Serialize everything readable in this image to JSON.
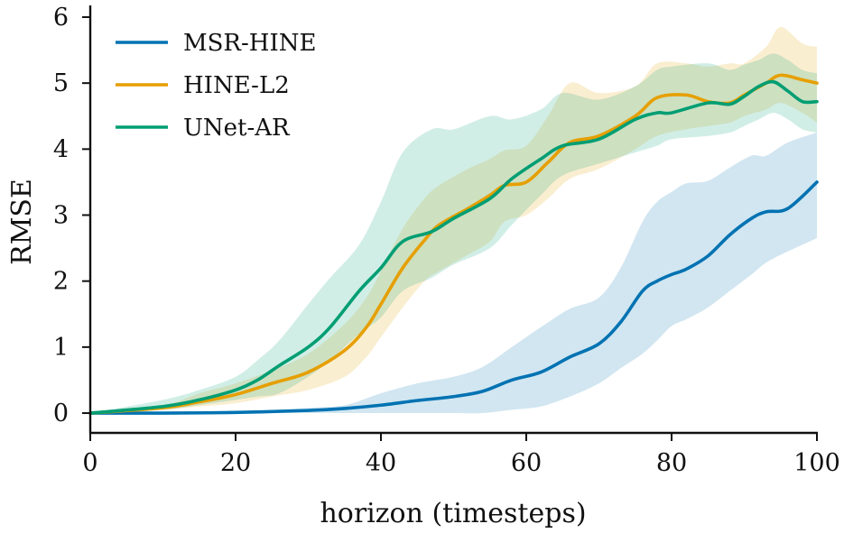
{
  "chart_data": {
    "type": "line",
    "title": "",
    "xlabel": "horizon (timesteps)",
    "ylabel": "RMSE",
    "xlim": [
      0,
      100
    ],
    "ylim": [
      -0.3,
      6.15
    ],
    "xticks": [
      0,
      20,
      40,
      60,
      80,
      100
    ],
    "yticks": [
      0,
      1,
      2,
      3,
      4,
      5,
      6
    ],
    "grid": false,
    "legend_position": "top-left",
    "series": [
      {
        "name": "MSR-HINE",
        "color": "#0072B2",
        "x": [
          0,
          10,
          20,
          30,
          35,
          40,
          45,
          50,
          54,
          58,
          62,
          66,
          70,
          73,
          76,
          78,
          80,
          82,
          85,
          88,
          91,
          93,
          96,
          100
        ],
        "mean": [
          0,
          0,
          0.01,
          0.04,
          0.07,
          0.12,
          0.19,
          0.25,
          0.33,
          0.5,
          0.62,
          0.85,
          1.05,
          1.38,
          1.85,
          2.0,
          2.1,
          2.18,
          2.38,
          2.7,
          2.95,
          3.05,
          3.1,
          3.5
        ],
        "lower": [
          0,
          0,
          0,
          0,
          0,
          0,
          0,
          0,
          0,
          0.05,
          0.1,
          0.25,
          0.45,
          0.68,
          0.9,
          1.1,
          1.32,
          1.42,
          1.6,
          1.85,
          2.1,
          2.28,
          2.45,
          2.65
        ],
        "upper": [
          0,
          0,
          0.02,
          0.08,
          0.12,
          0.3,
          0.45,
          0.55,
          0.7,
          1.0,
          1.3,
          1.58,
          1.75,
          2.2,
          2.9,
          3.2,
          3.35,
          3.48,
          3.52,
          3.72,
          3.9,
          3.9,
          4.1,
          4.25
        ]
      },
      {
        "name": "HINE-L2",
        "color": "#E69F00",
        "x": [
          0,
          10,
          15,
          20,
          25,
          30,
          35,
          38,
          40,
          43,
          46,
          48,
          52,
          55,
          57,
          60,
          63,
          66,
          70,
          75,
          78,
          82,
          85,
          88,
          90,
          93,
          95,
          98,
          100
        ],
        "mean": [
          0,
          0.08,
          0.17,
          0.28,
          0.45,
          0.62,
          0.95,
          1.3,
          1.65,
          2.2,
          2.62,
          2.85,
          3.1,
          3.3,
          3.45,
          3.5,
          3.8,
          4.1,
          4.2,
          4.5,
          4.78,
          4.82,
          4.72,
          4.7,
          4.82,
          5.0,
          5.12,
          5.05,
          5.0
        ],
        "lower": [
          0,
          0.05,
          0.1,
          0.15,
          0.25,
          0.35,
          0.55,
          0.85,
          1.15,
          1.6,
          2.0,
          2.15,
          2.4,
          2.6,
          2.9,
          3.0,
          3.25,
          3.55,
          3.7,
          4.0,
          4.2,
          4.3,
          4.35,
          4.4,
          4.5,
          4.6,
          4.7,
          4.55,
          4.4
        ],
        "upper": [
          0,
          0.12,
          0.3,
          0.45,
          0.65,
          0.9,
          1.35,
          1.75,
          2.15,
          2.8,
          3.25,
          3.45,
          3.7,
          3.85,
          3.98,
          4.05,
          4.5,
          5.0,
          4.85,
          4.95,
          5.3,
          5.3,
          5.25,
          5.3,
          5.3,
          5.55,
          5.85,
          5.6,
          5.55
        ]
      },
      {
        "name": "UNet-AR",
        "color": "#009E73",
        "x": [
          0,
          10,
          15,
          20,
          23,
          26,
          30,
          33,
          37,
          40,
          43,
          47,
          50,
          55,
          58,
          62,
          65,
          70,
          75,
          78,
          80,
          85,
          88,
          90,
          92,
          94,
          96,
          98,
          100
        ],
        "mean": [
          0,
          0.1,
          0.2,
          0.35,
          0.5,
          0.72,
          1.0,
          1.3,
          1.85,
          2.2,
          2.6,
          2.75,
          2.95,
          3.25,
          3.55,
          3.85,
          4.05,
          4.15,
          4.45,
          4.55,
          4.55,
          4.7,
          4.68,
          4.8,
          4.95,
          5.02,
          4.88,
          4.72,
          4.72
        ],
        "lower": [
          0,
          0.05,
          0.12,
          0.2,
          0.25,
          0.3,
          0.55,
          0.8,
          1.2,
          1.45,
          1.85,
          2.05,
          2.25,
          2.5,
          2.85,
          3.3,
          3.6,
          3.78,
          3.95,
          4.05,
          4.15,
          4.2,
          4.25,
          4.35,
          4.45,
          4.55,
          4.45,
          4.3,
          4.25
        ],
        "upper": [
          0,
          0.2,
          0.35,
          0.55,
          0.8,
          1.1,
          1.65,
          2.05,
          2.55,
          3.2,
          3.95,
          4.3,
          4.3,
          4.5,
          4.45,
          4.6,
          4.85,
          4.75,
          4.95,
          5.2,
          5.25,
          5.3,
          5.2,
          5.28,
          5.35,
          5.45,
          5.35,
          5.2,
          5.15
        ]
      }
    ]
  }
}
